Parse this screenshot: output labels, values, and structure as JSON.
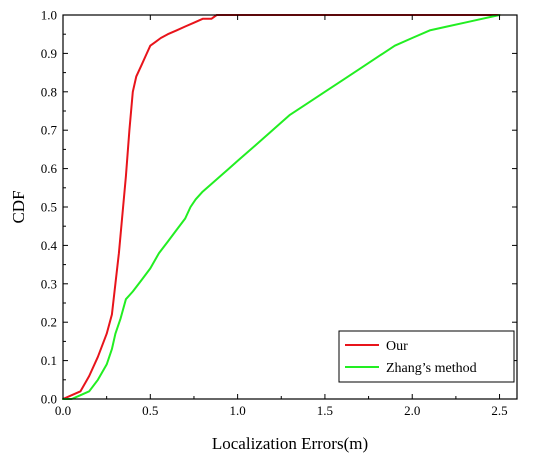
{
  "chart_data": {
    "type": "line",
    "title": "",
    "xlabel": "Localization Errors(m)",
    "ylabel": "CDF",
    "xlim": [
      0,
      2.6
    ],
    "ylim": [
      0,
      1.0
    ],
    "xticks": [
      "0.0",
      "0.5",
      "1.0",
      "1.5",
      "2.0",
      "2.5"
    ],
    "yticks": [
      "0.0",
      "0.1",
      "0.2",
      "0.3",
      "0.4",
      "0.5",
      "0.6",
      "0.7",
      "0.8",
      "0.9",
      "1.0"
    ],
    "grid": false,
    "legend_position": "bottom-right",
    "series": [
      {
        "name": "Our",
        "color": "#e8141b",
        "x": [
          0.0,
          0.05,
          0.1,
          0.15,
          0.2,
          0.25,
          0.28,
          0.3,
          0.32,
          0.34,
          0.36,
          0.38,
          0.4,
          0.42,
          0.45,
          0.48,
          0.5,
          0.53,
          0.56,
          0.6,
          0.65,
          0.7,
          0.75,
          0.8,
          0.85,
          0.88,
          0.9,
          1.0,
          1.2,
          1.5,
          2.0,
          2.5
        ],
        "y": [
          0.0,
          0.01,
          0.02,
          0.06,
          0.11,
          0.17,
          0.22,
          0.3,
          0.38,
          0.48,
          0.58,
          0.7,
          0.8,
          0.84,
          0.87,
          0.9,
          0.92,
          0.93,
          0.94,
          0.95,
          0.96,
          0.97,
          0.98,
          0.99,
          0.99,
          1.0,
          1.0,
          1.0,
          1.0,
          1.0,
          1.0,
          1.0
        ]
      },
      {
        "name": "Zhang’s method",
        "color": "#22ee22",
        "x": [
          0.0,
          0.05,
          0.1,
          0.15,
          0.2,
          0.25,
          0.28,
          0.3,
          0.33,
          0.36,
          0.4,
          0.45,
          0.5,
          0.55,
          0.6,
          0.65,
          0.7,
          0.73,
          0.76,
          0.8,
          0.85,
          0.9,
          0.95,
          1.0,
          1.1,
          1.2,
          1.3,
          1.4,
          1.5,
          1.6,
          1.7,
          1.8,
          1.9,
          2.0,
          2.1,
          2.2,
          2.3,
          2.4,
          2.5
        ],
        "y": [
          0.0,
          0.0,
          0.01,
          0.02,
          0.05,
          0.09,
          0.13,
          0.17,
          0.21,
          0.26,
          0.28,
          0.31,
          0.34,
          0.38,
          0.41,
          0.44,
          0.47,
          0.5,
          0.52,
          0.54,
          0.56,
          0.58,
          0.6,
          0.62,
          0.66,
          0.7,
          0.74,
          0.77,
          0.8,
          0.83,
          0.86,
          0.89,
          0.92,
          0.94,
          0.96,
          0.97,
          0.98,
          0.99,
          1.0
        ]
      }
    ]
  }
}
